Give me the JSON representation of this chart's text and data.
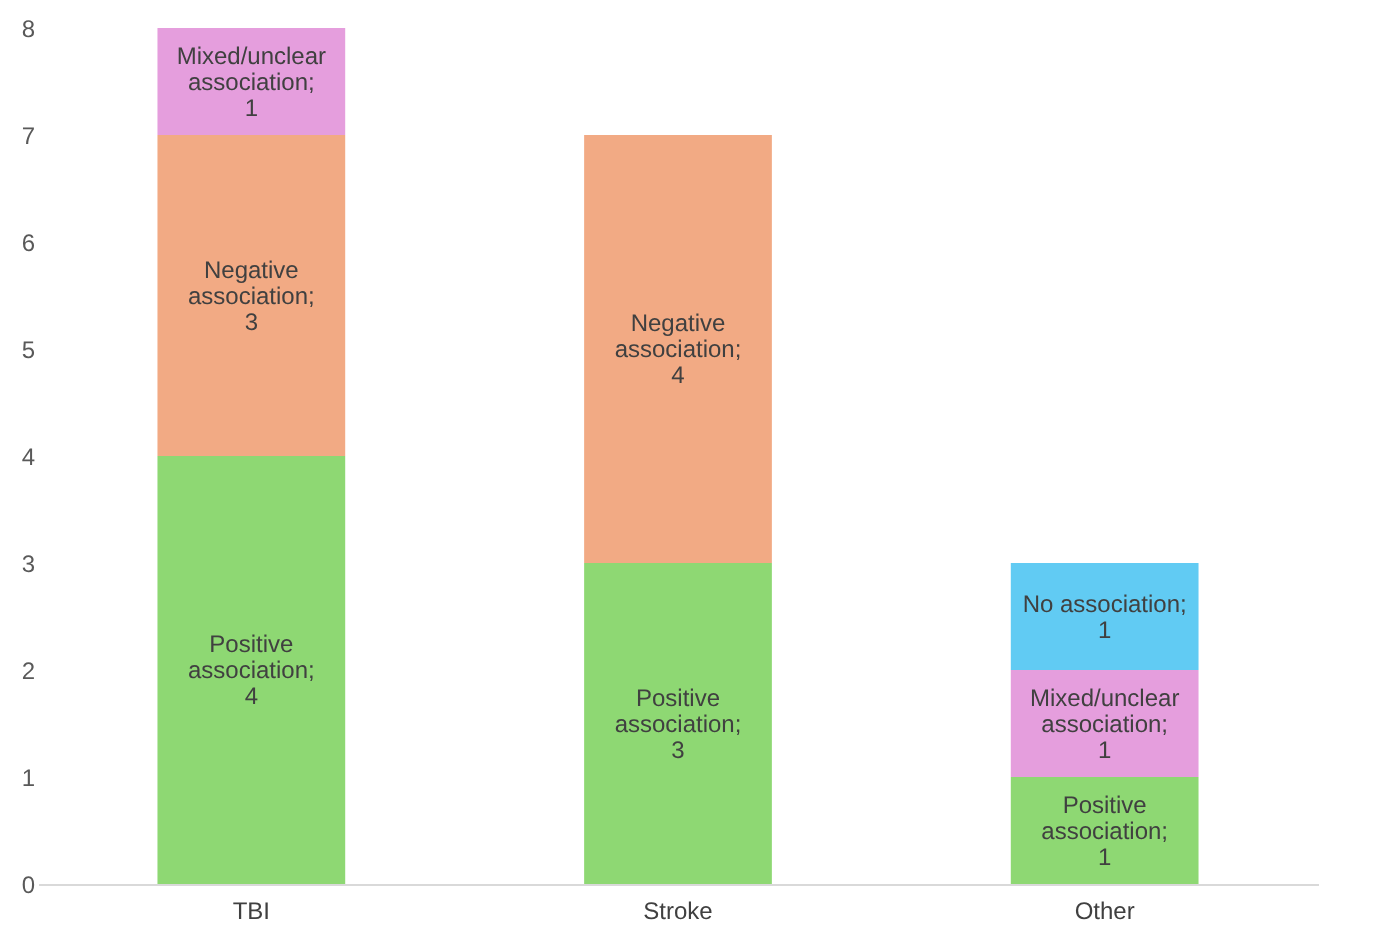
{
  "chart_data": {
    "type": "bar",
    "stacked": true,
    "data_labels": true,
    "grid": false,
    "categories": [
      "TBI",
      "Stroke",
      "Other"
    ],
    "ylim": [
      0,
      8
    ],
    "yticks": [
      0,
      1,
      2,
      3,
      4,
      5,
      6,
      7,
      8
    ],
    "series": [
      {
        "name": "Positive association;",
        "color": "#8ed873",
        "values": [
          4,
          3,
          1
        ]
      },
      {
        "name": "Negative association;",
        "color": "#f2aa84",
        "values": [
          3,
          4,
          null
        ]
      },
      {
        "name": "Mixed/unclear association;",
        "color": "#e59edd",
        "values": [
          1,
          null,
          1
        ]
      },
      {
        "name": "No association;",
        "color": "#61cbf3",
        "values": [
          null,
          null,
          1
        ]
      }
    ]
  }
}
